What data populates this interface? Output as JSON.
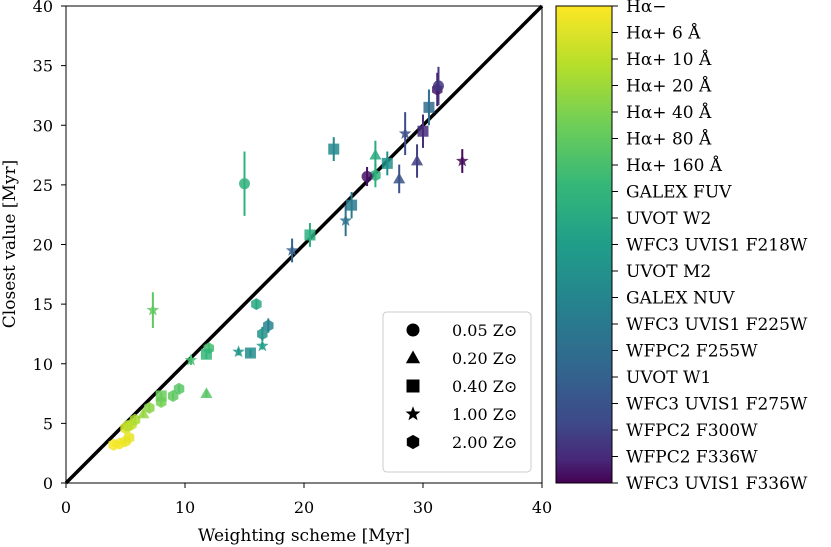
{
  "chart_data": {
    "type": "scatter",
    "xlabel": "Weighting scheme [Myr]",
    "ylabel": "Closest value [Myr]",
    "xlim": [
      0,
      40
    ],
    "ylim": [
      0,
      40
    ],
    "xticks": [
      0,
      10,
      20,
      30,
      40
    ],
    "yticks": [
      0,
      5,
      10,
      15,
      20,
      25,
      30,
      35,
      40
    ],
    "xtick_labels": [
      "0",
      "10",
      "20",
      "30",
      "40"
    ],
    "ytick_labels": [
      "0",
      "5",
      "10",
      "15",
      "20",
      "25",
      "30",
      "35",
      "40"
    ],
    "reference_line": {
      "type": "one-to-one",
      "color": "#000000"
    },
    "grid": false,
    "legend": {
      "placement": "lower-right",
      "entries": [
        {
          "marker": "circle",
          "label": "0.05 Z⊙"
        },
        {
          "marker": "triangle",
          "label": "0.20 Z⊙"
        },
        {
          "marker": "square",
          "label": "0.40 Z⊙"
        },
        {
          "marker": "star",
          "label": "1.00 Z⊙"
        },
        {
          "marker": "hexagon",
          "label": "2.00 Z⊙"
        }
      ]
    },
    "colorbar": {
      "colormap": "viridis (reversed: yellow top, purple bottom)",
      "labels": [
        "Hα−",
        "Hα+ 6 Å",
        "Hα+ 10 Å",
        "Hα+ 20 Å",
        "Hα+ 40 Å",
        "Hα+ 80 Å",
        "Hα+ 160 Å",
        "GALEX FUV",
        "UVOT W2",
        "WFC3 UVIS1 F218W",
        "UVOT M2",
        "GALEX NUV",
        "WFC3 UVIS1 F225W",
        "WFPC2 F255W",
        "UVOT W1",
        "WFC3 UVIS1 F275W",
        "WFPC2 F300W",
        "WFPC2 F336W",
        "WFC3 UVIS1 F336W"
      ]
    },
    "series": [
      {
        "marker": "hexagon",
        "points": [
          {
            "x": 4.0,
            "y": 3.2,
            "c": 0.01,
            "err": 0.2
          },
          {
            "x": 4.5,
            "y": 3.3,
            "c": 0.02,
            "err": 0.2
          },
          {
            "x": 5.0,
            "y": 3.5,
            "c": 0.03,
            "err": 0.3
          },
          {
            "x": 5.3,
            "y": 3.8,
            "c": 0.04,
            "err": 0.2
          },
          {
            "x": 5.0,
            "y": 4.6,
            "c": 0.06,
            "err": 0.3
          },
          {
            "x": 5.5,
            "y": 4.9,
            "c": 0.1,
            "err": 0.3
          },
          {
            "x": 5.8,
            "y": 5.3,
            "c": 0.14,
            "err": 0.3
          },
          {
            "x": 7.0,
            "y": 6.3,
            "c": 0.2,
            "err": 0.3
          },
          {
            "x": 8.0,
            "y": 6.8,
            "c": 0.24,
            "err": 0.3
          },
          {
            "x": 9.0,
            "y": 7.3,
            "c": 0.28,
            "err": 0.3
          },
          {
            "x": 9.5,
            "y": 7.9,
            "c": 0.3,
            "err": 0.3
          },
          {
            "x": 12.0,
            "y": 11.3,
            "c": 0.34,
            "err": 0.4
          },
          {
            "x": 16.0,
            "y": 15.0,
            "c": 0.45,
            "err": 0.4
          },
          {
            "x": 16.5,
            "y": 12.5,
            "c": 0.55,
            "err": 0.6
          },
          {
            "x": 17.0,
            "y": 13.2,
            "c": 0.62,
            "err": 0.6
          },
          {
            "x": 26.0,
            "y": 25.8,
            "c": 0.4,
            "err": 1.0
          },
          {
            "x": 31.2,
            "y": 33.0,
            "c": 0.97,
            "err": 1.4
          }
        ]
      },
      {
        "marker": "circle",
        "points": [
          {
            "x": 5.2,
            "y": 4.8,
            "c": 0.12,
            "err": 0.3
          },
          {
            "x": 15.0,
            "y": 25.1,
            "c": 0.4,
            "err": 2.7
          },
          {
            "x": 25.3,
            "y": 25.7,
            "c": 0.98,
            "err": 0.8
          },
          {
            "x": 31.3,
            "y": 33.3,
            "c": 0.92,
            "err": 1.6
          }
        ]
      },
      {
        "marker": "triangle",
        "points": [
          {
            "x": 6.5,
            "y": 5.8,
            "c": 0.18,
            "err": 0.3
          },
          {
            "x": 11.8,
            "y": 7.5,
            "c": 0.3,
            "err": 0.3
          },
          {
            "x": 26.0,
            "y": 27.5,
            "c": 0.44,
            "err": 1.2
          },
          {
            "x": 29.5,
            "y": 27.0,
            "c": 0.9,
            "err": 1.4
          },
          {
            "x": 28.0,
            "y": 25.5,
            "c": 0.84,
            "err": 1.2
          }
        ]
      },
      {
        "marker": "square",
        "points": [
          {
            "x": 8.0,
            "y": 7.3,
            "c": 0.26,
            "err": 0.3
          },
          {
            "x": 11.8,
            "y": 10.8,
            "c": 0.38,
            "err": 0.4
          },
          {
            "x": 15.5,
            "y": 10.9,
            "c": 0.58,
            "err": 0.3
          },
          {
            "x": 20.5,
            "y": 20.8,
            "c": 0.42,
            "err": 1.0
          },
          {
            "x": 22.5,
            "y": 28.0,
            "c": 0.6,
            "err": 1.0
          },
          {
            "x": 24.0,
            "y": 23.3,
            "c": 0.66,
            "err": 1.1
          },
          {
            "x": 27.0,
            "y": 26.8,
            "c": 0.56,
            "err": 1.0
          },
          {
            "x": 30.0,
            "y": 29.5,
            "c": 0.94,
            "err": 1.4
          },
          {
            "x": 30.5,
            "y": 31.5,
            "c": 0.73,
            "err": 1.5
          }
        ]
      },
      {
        "marker": "star",
        "points": [
          {
            "x": 7.3,
            "y": 14.5,
            "c": 0.28,
            "err": 1.5
          },
          {
            "x": 10.5,
            "y": 10.3,
            "c": 0.34,
            "err": 0.4
          },
          {
            "x": 14.5,
            "y": 11.0,
            "c": 0.54,
            "err": 0.3
          },
          {
            "x": 16.5,
            "y": 11.5,
            "c": 0.5,
            "err": 0.3
          },
          {
            "x": 19.0,
            "y": 19.5,
            "c": 0.78,
            "err": 1.0
          },
          {
            "x": 23.5,
            "y": 22.0,
            "c": 0.7,
            "err": 1.3
          },
          {
            "x": 28.5,
            "y": 29.3,
            "c": 0.86,
            "err": 1.8
          },
          {
            "x": 33.3,
            "y": 27.0,
            "c": 0.99,
            "err": 1.0
          }
        ]
      }
    ]
  }
}
